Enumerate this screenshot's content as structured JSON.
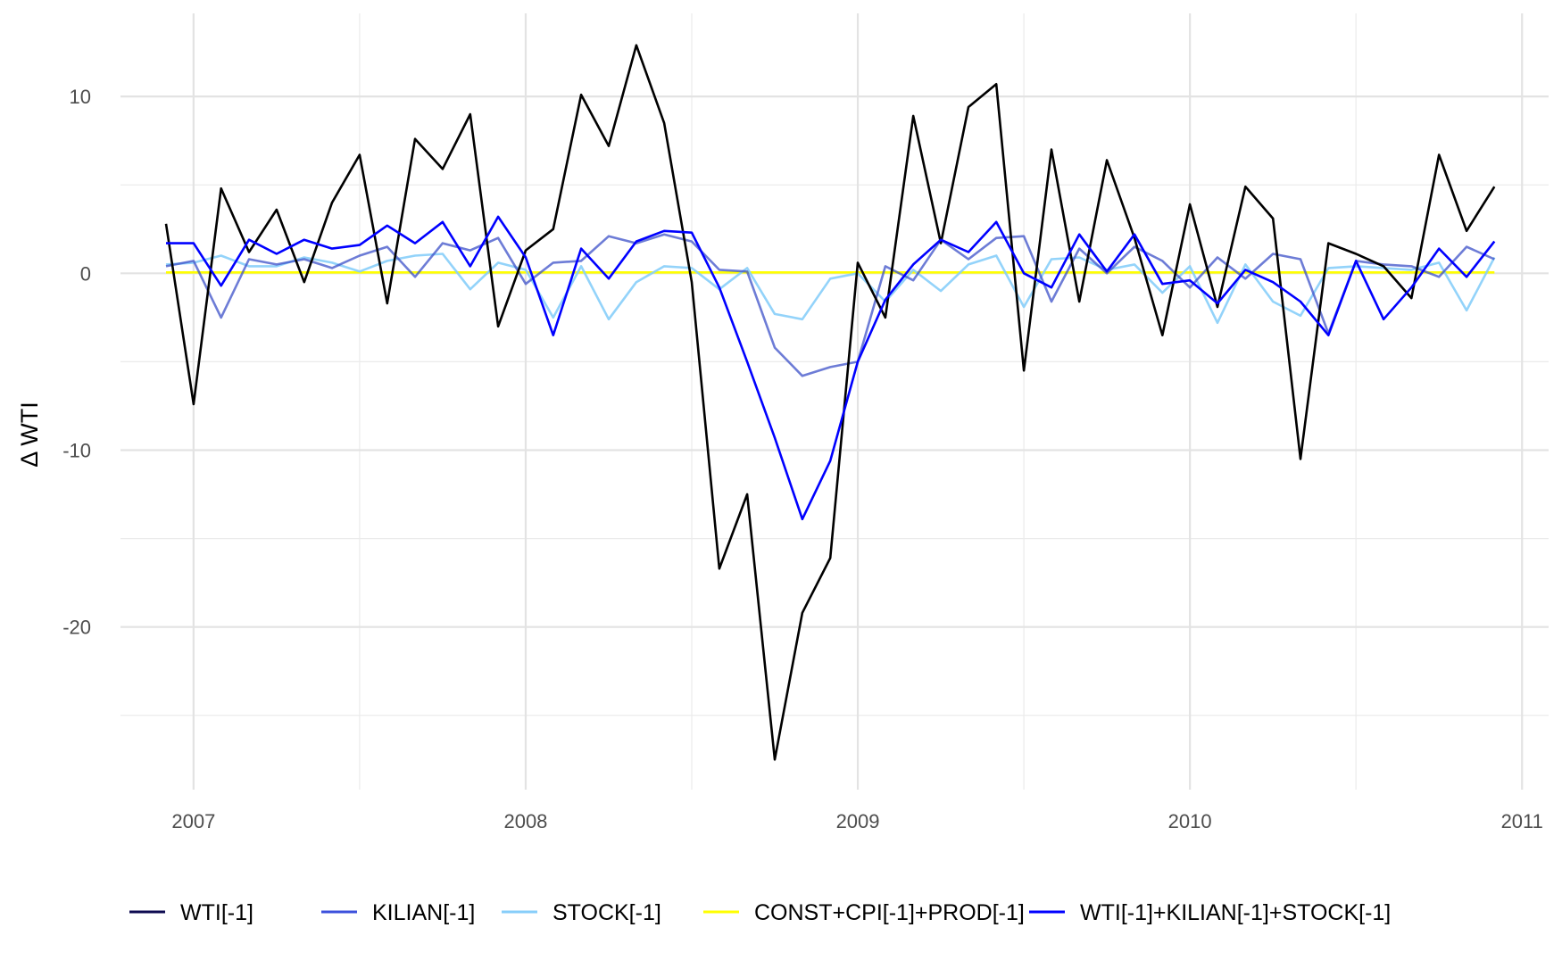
{
  "chart_data": {
    "type": "line",
    "title": "",
    "xlabel": "",
    "ylabel": "Δ WTI",
    "xlim": [
      2006.78,
      2011.08
    ],
    "ylim": [
      -29.2,
      14.7
    ],
    "x_ticks": [
      2007,
      2008,
      2009,
      2010,
      2011
    ],
    "x_tick_labels": [
      "2007",
      "2008",
      "2009",
      "2010",
      "2011"
    ],
    "y_ticks": [
      10,
      0,
      -10,
      -20
    ],
    "y_tick_labels": [
      "10",
      "0",
      "-10",
      "-20"
    ],
    "grid": true,
    "legend_position": "bottom",
    "x": [
      2006.917,
      2007.0,
      2007.083,
      2007.167,
      2007.25,
      2007.333,
      2007.417,
      2007.5,
      2007.583,
      2007.667,
      2007.75,
      2007.833,
      2007.917,
      2008.0,
      2008.083,
      2008.167,
      2008.25,
      2008.333,
      2008.417,
      2008.5,
      2008.583,
      2008.667,
      2008.75,
      2008.833,
      2008.917,
      2009.0,
      2009.083,
      2009.167,
      2009.25,
      2009.333,
      2009.417,
      2009.5,
      2009.583,
      2009.667,
      2009.75,
      2009.833,
      2009.917,
      2010.0,
      2010.083,
      2010.167,
      2010.25,
      2010.333,
      2010.417,
      2010.5,
      2010.583,
      2010.667,
      2010.75,
      2010.833,
      2010.917
    ],
    "series": [
      {
        "name": "WTI[-1]",
        "color": "#000000",
        "values": [
          2.8,
          -7.4,
          4.8,
          1.2,
          3.6,
          -0.5,
          4.0,
          6.7,
          -1.7,
          7.6,
          5.9,
          9.0,
          -3.0,
          1.3,
          2.5,
          10.1,
          7.2,
          12.9,
          8.5,
          -0.5,
          -16.7,
          -12.5,
          -27.5,
          -19.2,
          -16.1,
          0.6,
          -2.5,
          8.9,
          1.7,
          9.4,
          10.7,
          -5.5,
          7.0,
          -1.6,
          6.4,
          2.0,
          -3.5,
          3.9,
          -1.9,
          4.9,
          3.1,
          -10.5,
          1.7,
          1.1,
          0.4,
          -1.4,
          6.7,
          2.4,
          4.9
        ]
      },
      {
        "name": "KILIAN[-1]",
        "color": "#3c50c8",
        "values": [
          0.4,
          0.7,
          -2.5,
          0.8,
          0.5,
          0.8,
          0.3,
          1.0,
          1.5,
          -0.2,
          1.7,
          1.3,
          2.0,
          -0.6,
          0.6,
          0.7,
          2.1,
          1.7,
          2.2,
          1.8,
          0.2,
          0.1,
          -4.2,
          -5.8,
          -5.3,
          -5.0,
          0.4,
          -0.4,
          1.9,
          0.8,
          2.0,
          2.1,
          -1.6,
          1.4,
          0.0,
          1.5,
          0.7,
          -0.8,
          0.9,
          -0.3,
          1.1,
          0.8,
          -3.4,
          0.7,
          0.5,
          0.4,
          -0.2,
          1.5,
          0.8
        ]
      },
      {
        "name": "STOCK[-1]",
        "color": "#87cefa",
        "values": [
          0.5,
          0.6,
          1.0,
          0.4,
          0.4,
          0.9,
          0.6,
          0.1,
          0.7,
          1.0,
          1.1,
          -0.9,
          0.6,
          0.2,
          -2.5,
          0.4,
          -2.6,
          -0.5,
          0.4,
          0.3,
          -0.9,
          0.3,
          -2.3,
          -2.6,
          -0.3,
          0.0,
          -1.6,
          0.2,
          -1.0,
          0.5,
          1.0,
          -1.9,
          0.8,
          0.9,
          0.2,
          0.5,
          -1.1,
          0.4,
          -2.8,
          0.5,
          -1.6,
          -2.4,
          0.3,
          0.4,
          0.3,
          0.2,
          0.6,
          -2.1,
          0.9
        ]
      },
      {
        "name": "CONST+CPI[-1]+PROD[-1]",
        "color": "#ffff00",
        "values": [
          0.05,
          0.05,
          0.05,
          0.05,
          0.05,
          0.05,
          0.05,
          0.05,
          0.05,
          0.05,
          0.05,
          0.05,
          0.05,
          0.05,
          0.05,
          0.05,
          0.05,
          0.05,
          0.05,
          0.05,
          0.05,
          0.05,
          0.05,
          0.05,
          0.05,
          0.05,
          0.05,
          0.05,
          0.05,
          0.05,
          0.05,
          0.05,
          0.05,
          0.05,
          0.05,
          0.05,
          0.05,
          0.05,
          0.05,
          0.05,
          0.05,
          0.05,
          0.05,
          0.05,
          0.05,
          0.05,
          0.05,
          0.05,
          0.05
        ]
      },
      {
        "name": "WTI[-1]+KILIAN[-1]+STOCK[-1]",
        "color": "#0000ff",
        "values": [
          1.7,
          1.7,
          -0.7,
          1.9,
          1.1,
          1.9,
          1.4,
          1.6,
          2.7,
          1.7,
          2.9,
          0.4,
          3.2,
          0.9,
          -3.5,
          1.4,
          -0.3,
          1.8,
          2.4,
          2.3,
          -0.8,
          -5.0,
          -9.3,
          -13.9,
          -10.6,
          -5.0,
          -1.5,
          0.5,
          1.9,
          1.2,
          2.9,
          0.0,
          -0.8,
          2.2,
          0.1,
          2.2,
          -0.6,
          -0.4,
          -1.7,
          0.2,
          -0.5,
          -1.6,
          -3.5,
          0.7,
          -2.6,
          -0.8,
          1.4,
          -0.2,
          1.8
        ]
      }
    ]
  }
}
